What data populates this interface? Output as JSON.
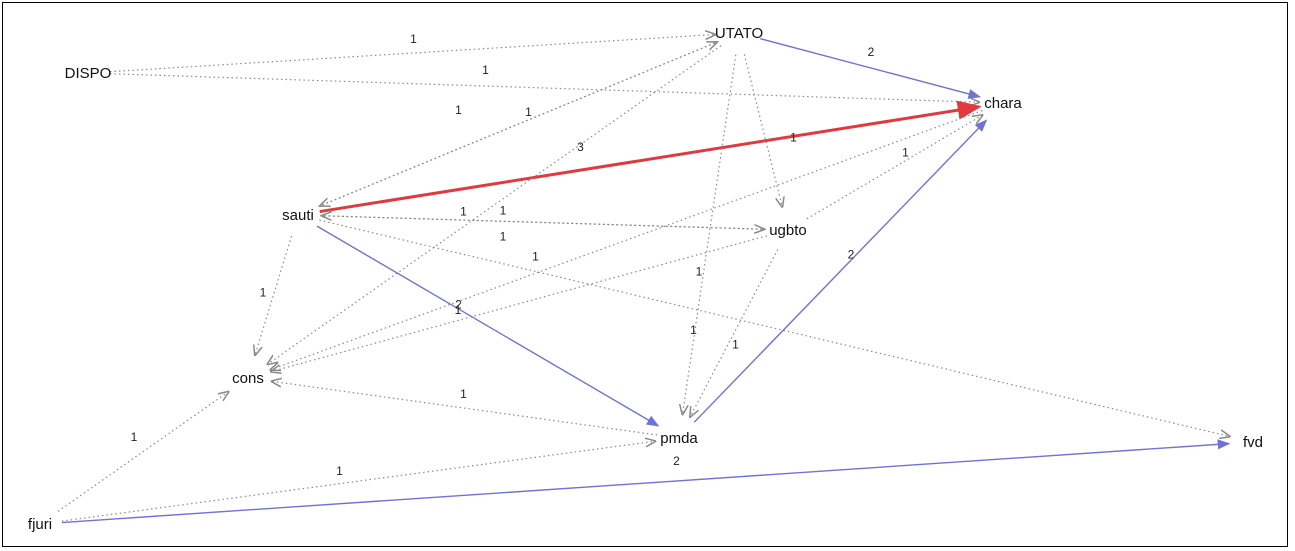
{
  "graph": {
    "nodes": [
      {
        "id": "UTATO",
        "label": "UTATO"
      },
      {
        "id": "DISPO",
        "label": "DISPO"
      },
      {
        "id": "chara",
        "label": "chara"
      },
      {
        "id": "sauti",
        "label": "sauti"
      },
      {
        "id": "ugbto",
        "label": "ugbto"
      },
      {
        "id": "cons",
        "label": "cons"
      },
      {
        "id": "pmda",
        "label": "pmda"
      },
      {
        "id": "fvd",
        "label": "fvd"
      },
      {
        "id": "fjuri",
        "label": "fjuri"
      }
    ],
    "edges": [
      {
        "from": "DISPO",
        "to": "UTATO",
        "weight": "1",
        "style": "dotted"
      },
      {
        "from": "DISPO",
        "to": "chara",
        "weight": "1",
        "style": "dotted"
      },
      {
        "from": "UTATO",
        "to": "chara",
        "weight": "2",
        "style": "solid"
      },
      {
        "from": "sauti",
        "to": "chara",
        "weight": "3",
        "style": "strong"
      },
      {
        "from": "sauti",
        "to": "pmda",
        "weight": "2",
        "style": "solid"
      },
      {
        "from": "pmda",
        "to": "chara",
        "weight": "2",
        "style": "solid"
      },
      {
        "from": "fjuri",
        "to": "fvd",
        "weight": "2",
        "style": "solid"
      },
      {
        "from": "UTATO",
        "to": "sauti",
        "weight": "1",
        "style": "dotted"
      },
      {
        "from": "UTATO",
        "to": "cons",
        "weight": "1",
        "style": "dotted"
      },
      {
        "from": "UTATO",
        "to": "ugbto",
        "weight": "1",
        "style": "dotted"
      },
      {
        "from": "UTATO",
        "to": "pmda",
        "weight": "1",
        "style": "dotted"
      },
      {
        "from": "sauti",
        "to": "UTATO",
        "weight": "1",
        "style": "dotted"
      },
      {
        "from": "ugbto",
        "to": "chara",
        "weight": "1",
        "style": "dotted"
      },
      {
        "from": "sauti",
        "to": "ugbto",
        "weight": "1",
        "style": "dotted"
      },
      {
        "from": "ugbto",
        "to": "sauti",
        "weight": "1",
        "style": "dotted"
      },
      {
        "from": "sauti",
        "to": "cons",
        "weight": "1",
        "style": "dotted"
      },
      {
        "from": "sauti",
        "to": "fvd",
        "weight": "1",
        "style": "dotted"
      },
      {
        "from": "ugbto",
        "to": "cons",
        "weight": "1",
        "style": "dotted"
      },
      {
        "from": "chara",
        "to": "cons",
        "weight": "1",
        "style": "dotted"
      },
      {
        "from": "pmda",
        "to": "cons",
        "weight": "1",
        "style": "dotted"
      },
      {
        "from": "ugbto",
        "to": "pmda",
        "weight": "1",
        "style": "dotted"
      },
      {
        "from": "fjuri",
        "to": "cons",
        "weight": "1",
        "style": "dotted"
      },
      {
        "from": "fjuri",
        "to": "pmda",
        "weight": "1",
        "style": "dotted"
      }
    ]
  },
  "colors": {
    "solid_edge": "#6f73d6",
    "strong_edge": "#e0393e",
    "dotted_edge": "#8a8a8a",
    "border": "#000000"
  }
}
